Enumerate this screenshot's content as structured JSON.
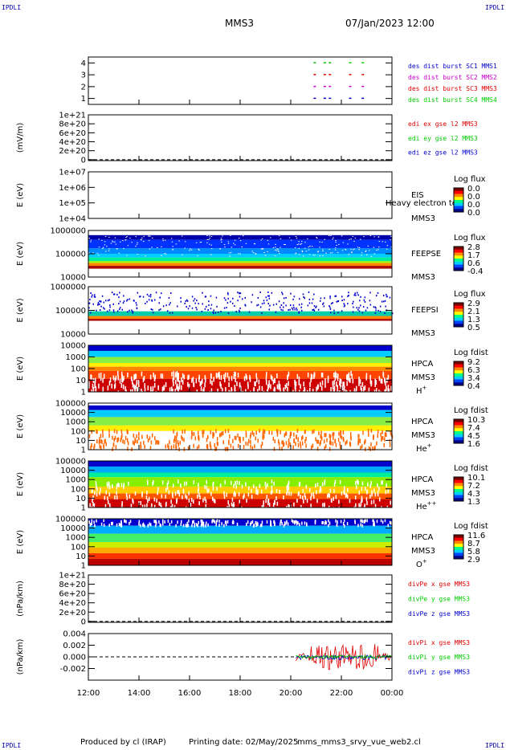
{
  "header": {
    "corner_label": "IPDLI",
    "mission": "MMS3",
    "datetime": "07/Jan/2023 12:00"
  },
  "footer": {
    "produced_by": "Produced by cl (IRAP)",
    "printing_date": "Printing date: 02/May/2025",
    "script": "mms_mms3_srvy_vue_web2.cl"
  },
  "colors": {
    "red": "#dd0000",
    "green": "#00cc00",
    "blue": "#0000cc",
    "magenta": "#cc00cc",
    "black": "#000000",
    "colorbar": [
      "#7a0000",
      "#ff0000",
      "#ff8800",
      "#ffff00",
      "#00ff88",
      "#00ccff",
      "#0044ff",
      "#000088"
    ]
  },
  "chart_data": [
    {
      "type": "scatter",
      "id": "burst",
      "ylim": [
        0.5,
        4.5
      ],
      "yticks": [
        "1",
        "2",
        "3",
        "4"
      ],
      "legend": [
        {
          "label": "des dist burst SC1 MMS1",
          "color": "#0000cc"
        },
        {
          "label": "des dist burst SC2 MMS2",
          "color": "#cc00cc"
        },
        {
          "label": "des dist burst SC3 MMS3",
          "color": "#dd0000"
        },
        {
          "label": "des dist burst SC4 MMS4",
          "color": "#00cc00"
        }
      ],
      "series": [
        {
          "name": "des dist burst SC1 MMS1",
          "y": 1,
          "x": [
            20.9,
            21.3,
            21.5,
            22.3,
            22.8
          ]
        },
        {
          "name": "des dist burst SC2 MMS2",
          "y": 2,
          "x": [
            20.9,
            21.3,
            21.5,
            22.3,
            22.8
          ]
        },
        {
          "name": "des dist burst SC3 MMS3",
          "y": 3,
          "x": [
            20.9,
            21.3,
            21.5,
            22.3,
            22.8
          ]
        },
        {
          "name": "des dist burst SC4 MMS4",
          "y": 4,
          "x": [
            20.9,
            21.3,
            21.5,
            22.3,
            22.8
          ]
        }
      ]
    },
    {
      "type": "line",
      "id": "edi",
      "ylabel": "(mV/m)",
      "ylim": [
        -2e+19,
        1e+21
      ],
      "yticks": [
        "1e+21",
        "8e+20",
        "6e+20",
        "4e+20",
        "2e+20",
        "0"
      ],
      "zero_line": true,
      "legend": [
        {
          "label": "edi ex gse l2 MMS3",
          "color": "#dd0000"
        },
        {
          "label": "edi ey gse l2 MMS3",
          "color": "#00cc00"
        },
        {
          "label": "edi ez gse l2 MMS3",
          "color": "#0000cc"
        }
      ]
    },
    {
      "type": "heatmap",
      "id": "eis",
      "ylabel": "E (eV)",
      "yscale": "log",
      "yticks": [
        "1e+07",
        "1e+06",
        "1e+05",
        "1e+04"
      ],
      "labels": [
        "EIS",
        "MMS3"
      ],
      "overlay_text": "Heavy electron to",
      "colorbar": {
        "title": "Log flux",
        "ticks": [
          "0.0",
          "0.0",
          "0.0",
          "0.0"
        ]
      }
    },
    {
      "type": "heatmap",
      "id": "feepse",
      "ylabel": "E (eV)",
      "yscale": "log",
      "yticks": [
        "1000000",
        "100000",
        "10000"
      ],
      "labels": [
        "FEEPSE",
        "MMS3"
      ],
      "colorbar": {
        "title": "Log flux",
        "ticks": [
          "2.8",
          "1.7",
          "0.6",
          "-0.4"
        ]
      }
    },
    {
      "type": "heatmap",
      "id": "feepsi",
      "ylabel": "E (eV)",
      "yscale": "log",
      "yticks": [
        "1000000",
        "100000",
        "10000"
      ],
      "labels": [
        "FEEPSI",
        "MMS3"
      ],
      "colorbar": {
        "title": "Log flux",
        "ticks": [
          "2.9",
          "2.1",
          "1.3",
          "0.5"
        ]
      }
    },
    {
      "type": "heatmap",
      "id": "hpca_h",
      "ylabel": "E (eV)",
      "yscale": "log",
      "yticks": [
        "10000",
        "1000",
        "100",
        "10",
        "1"
      ],
      "labels": [
        "HPCA",
        "MMS3",
        "H+"
      ],
      "colorbar": {
        "title": "Log fdist",
        "ticks": [
          "9.2",
          "6.3",
          "3.4",
          "0.4"
        ]
      }
    },
    {
      "type": "heatmap",
      "id": "hpca_he",
      "ylabel": "E (eV)",
      "yscale": "log",
      "yticks": [
        "100000",
        "10000",
        "1000",
        "100",
        "10",
        "1"
      ],
      "labels": [
        "HPCA",
        "MMS3",
        "He+"
      ],
      "colorbar": {
        "title": "Log fdist",
        "ticks": [
          "10.3",
          "7.4",
          "4.5",
          "1.6"
        ]
      }
    },
    {
      "type": "heatmap",
      "id": "hpca_hepp",
      "ylabel": "E (eV)",
      "yscale": "log",
      "yticks": [
        "100000",
        "10000",
        "1000",
        "100",
        "10",
        "1"
      ],
      "labels": [
        "HPCA",
        "MMS3",
        "He++"
      ],
      "colorbar": {
        "title": "Log fdist",
        "ticks": [
          "10.1",
          "7.2",
          "4.3",
          "1.3"
        ]
      }
    },
    {
      "type": "heatmap",
      "id": "hpca_o",
      "ylabel": "E (eV)",
      "yscale": "log",
      "yticks": [
        "100000",
        "10000",
        "1000",
        "100",
        "10",
        "1"
      ],
      "labels": [
        "HPCA",
        "MMS3",
        "O+"
      ],
      "colorbar": {
        "title": "Log fdist",
        "ticks": [
          "11.6",
          "8.7",
          "5.8",
          "2.9"
        ]
      }
    },
    {
      "type": "line",
      "id": "divpe",
      "ylabel": "(nPa/km)",
      "ylim": [
        -2e+19,
        1e+21
      ],
      "yticks": [
        "1e+21",
        "8e+20",
        "6e+20",
        "4e+20",
        "2e+20",
        "0"
      ],
      "zero_line": true,
      "legend": [
        {
          "label": "divPe x gse MMS3",
          "color": "#dd0000"
        },
        {
          "label": "divPe y gse MMS3",
          "color": "#00cc00"
        },
        {
          "label": "divPe z gse MMS3",
          "color": "#0000cc"
        }
      ]
    },
    {
      "type": "line",
      "id": "divpi",
      "ylabel": "(nPa/km)",
      "ylim": [
        -0.004,
        0.004
      ],
      "yticks": [
        "0.004",
        "0.002",
        "0.000",
        "-0.002"
      ],
      "zero_line": true,
      "data_start": 20.2,
      "legend": [
        {
          "label": "divPi x gse MMS3",
          "color": "#dd0000"
        },
        {
          "label": "divPi y gse MMS3",
          "color": "#00cc00"
        },
        {
          "label": "divPi z gse MMS3",
          "color": "#0000cc"
        }
      ]
    }
  ],
  "xaxis": {
    "range_hours": [
      12,
      24
    ],
    "ticks": [
      "12:00",
      "14:00",
      "16:00",
      "18:00",
      "20:00",
      "22:00",
      "00:00"
    ]
  }
}
